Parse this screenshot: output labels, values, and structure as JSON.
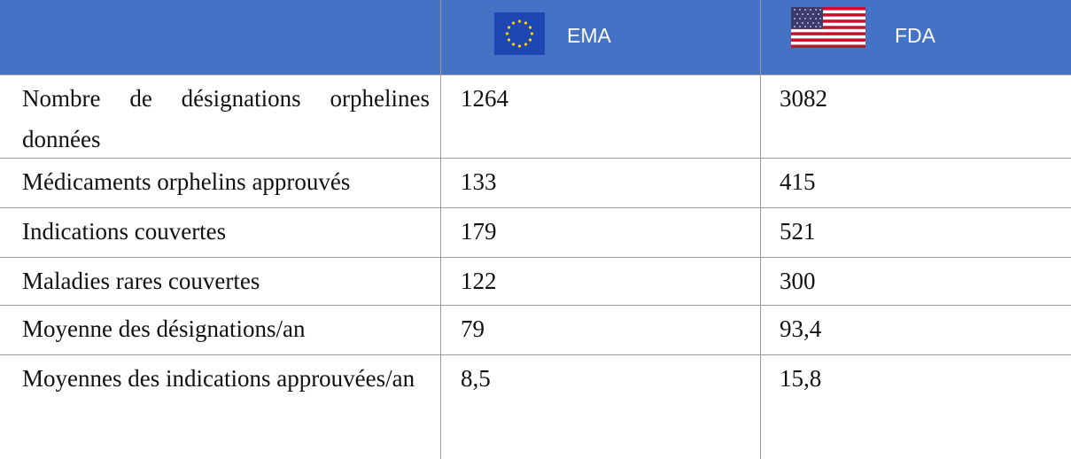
{
  "table": {
    "header": [
      "EMA",
      "FDA"
    ],
    "rows": [
      [
        "Nombre de désignations orphelines données",
        "1264",
        "3082"
      ],
      [
        "Médicaments orphelins approuvés",
        "133",
        "415"
      ],
      [
        "Indications couvertes",
        "179",
        "521"
      ],
      [
        "Maladies rares couvertes",
        "122",
        "300"
      ],
      [
        "Moyenne des désignations/an",
        "79",
        "93,4"
      ],
      [
        "Moyennes des indications approuvées/an",
        "8,5",
        "15,8"
      ]
    ]
  }
}
